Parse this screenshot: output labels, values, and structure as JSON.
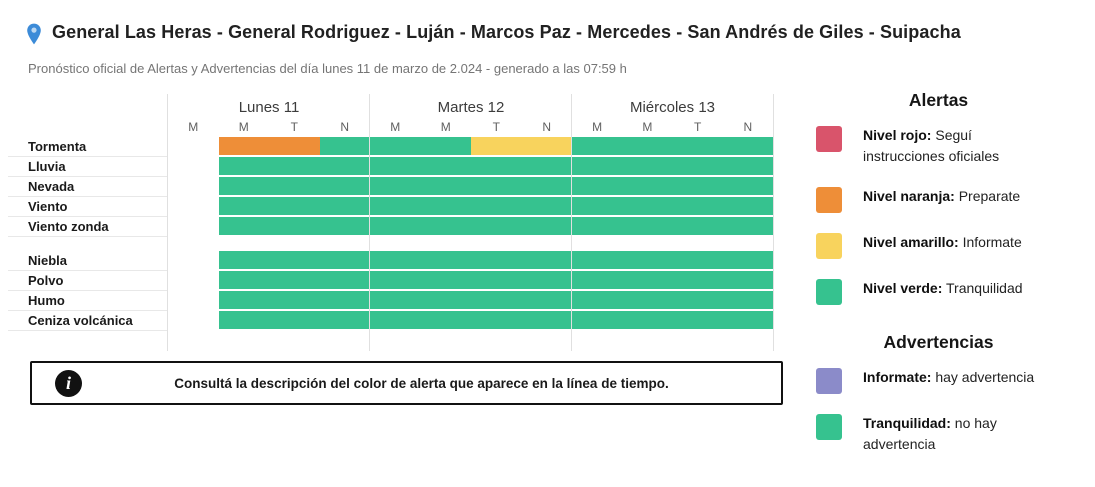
{
  "header": {
    "title": "General Las Heras - General Rodriguez - Luján - Marcos Paz - Mercedes - San Andrés de Giles - Suipacha",
    "subtitle": "Pronóstico oficial de Alertas y Advertencias del día lunes 11 de marzo de 2.024 - generado a las 07:59 h"
  },
  "colors": {
    "green": "#36c28f",
    "orange": "#ee8e38",
    "yellow": "#f8d35d",
    "red": "#d9546b",
    "purple": "#8b8bc9",
    "pin_blue": "#3c8bd8"
  },
  "chart_data": {
    "type": "heatmap",
    "days": [
      {
        "label": "Lunes 11",
        "periods": [
          "M",
          "M",
          "T",
          "N"
        ]
      },
      {
        "label": "Martes 12",
        "periods": [
          "M",
          "M",
          "T",
          "N"
        ]
      },
      {
        "label": "Miércoles 13",
        "periods": [
          "M",
          "M",
          "T",
          "N"
        ]
      }
    ],
    "legend_note": "cell values are alert levels per day period; empty = no data (period elapsed)",
    "groups": [
      {
        "name": "alertas",
        "rows": [
          {
            "label": "Tormenta",
            "cells": [
              [
                "empty",
                "orange",
                "orange",
                "green"
              ],
              [
                "green",
                "green",
                "yellow",
                "yellow"
              ],
              [
                "green",
                "green",
                "green",
                "green"
              ]
            ]
          },
          {
            "label": "Lluvia",
            "cells": [
              [
                "empty",
                "green",
                "green",
                "green"
              ],
              [
                "green",
                "green",
                "green",
                "green"
              ],
              [
                "green",
                "green",
                "green",
                "green"
              ]
            ]
          },
          {
            "label": "Nevada",
            "cells": [
              [
                "empty",
                "green",
                "green",
                "green"
              ],
              [
                "green",
                "green",
                "green",
                "green"
              ],
              [
                "green",
                "green",
                "green",
                "green"
              ]
            ]
          },
          {
            "label": "Viento",
            "cells": [
              [
                "empty",
                "green",
                "green",
                "green"
              ],
              [
                "green",
                "green",
                "green",
                "green"
              ],
              [
                "green",
                "green",
                "green",
                "green"
              ]
            ]
          },
          {
            "label": "Viento zonda",
            "cells": [
              [
                "empty",
                "green",
                "green",
                "green"
              ],
              [
                "green",
                "green",
                "green",
                "green"
              ],
              [
                "green",
                "green",
                "green",
                "green"
              ]
            ]
          }
        ]
      },
      {
        "name": "advertencias",
        "rows": [
          {
            "label": "Niebla",
            "cells": [
              [
                "empty",
                "green",
                "green",
                "green"
              ],
              [
                "green",
                "green",
                "green",
                "green"
              ],
              [
                "green",
                "green",
                "green",
                "green"
              ]
            ]
          },
          {
            "label": "Polvo",
            "cells": [
              [
                "empty",
                "green",
                "green",
                "green"
              ],
              [
                "green",
                "green",
                "green",
                "green"
              ],
              [
                "green",
                "green",
                "green",
                "green"
              ]
            ]
          },
          {
            "label": "Humo",
            "cells": [
              [
                "empty",
                "green",
                "green",
                "green"
              ],
              [
                "green",
                "green",
                "green",
                "green"
              ],
              [
                "green",
                "green",
                "green",
                "green"
              ]
            ]
          },
          {
            "label": "Ceniza volcánica",
            "cells": [
              [
                "empty",
                "green",
                "green",
                "green"
              ],
              [
                "green",
                "green",
                "green",
                "green"
              ],
              [
                "green",
                "green",
                "green",
                "green"
              ]
            ]
          }
        ]
      }
    ]
  },
  "legend": {
    "alertas": {
      "title": "Alertas",
      "items": [
        {
          "color_key": "red",
          "label": "Nivel rojo:",
          "text": "Seguí instrucciones oficiales"
        },
        {
          "color_key": "orange",
          "label": "Nivel naranja:",
          "text": "Preparate"
        },
        {
          "color_key": "yellow",
          "label": "Nivel amarillo:",
          "text": "Informate"
        },
        {
          "color_key": "green",
          "label": "Nivel verde:",
          "text": "Tranquilidad"
        }
      ]
    },
    "advertencias": {
      "title": "Advertencias",
      "items": [
        {
          "color_key": "purple",
          "label": "Informate:",
          "text": "hay advertencia"
        },
        {
          "color_key": "green",
          "label": "Tranquilidad:",
          "text": "no hay advertencia"
        }
      ]
    }
  },
  "info_box": {
    "icon": "info-icon",
    "text": "Consultá la descripción del color de alerta que aparece en la línea de tiempo."
  }
}
